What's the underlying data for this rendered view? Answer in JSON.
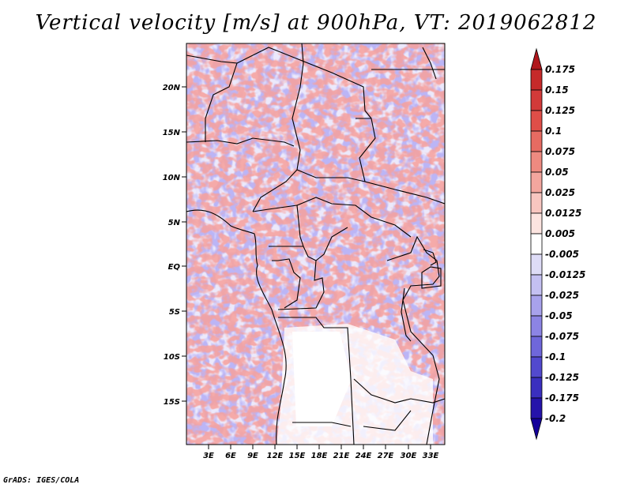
{
  "title": "Vertical velocity [m/s] at 900hPa, VT: 2019062812",
  "footer": "GrADS: IGES/COLA",
  "map": {
    "lat_labels": [
      "20N",
      "15N",
      "10N",
      "5N",
      "EQ",
      "5S",
      "10S",
      "15S"
    ],
    "lon_labels": [
      "3E",
      "6E",
      "9E",
      "12E",
      "15E",
      "18E",
      "21E",
      "24E",
      "27E",
      "30E",
      "33E"
    ]
  },
  "colorbar": {
    "levels": [
      "0.175",
      "0.15",
      "0.125",
      "0.1",
      "0.075",
      "0.05",
      "0.025",
      "0.0125",
      "0.005",
      "-0.005",
      "-0.0125",
      "-0.025",
      "-0.05",
      "-0.075",
      "-0.1",
      "-0.125",
      "-0.175",
      "-0.2"
    ],
    "colors": [
      "#b0171c",
      "#c62a2a",
      "#d23a39",
      "#df4e48",
      "#e66b62",
      "#ee8a80",
      "#f3a69e",
      "#f8c6c0",
      "#fce4e0",
      "#ffffff",
      "#dedcf7",
      "#c4c0f2",
      "#a8a2ec",
      "#8c84e4",
      "#6f67da",
      "#5249ce",
      "#3a2fbf",
      "#2513aa",
      "#14009a"
    ]
  }
}
